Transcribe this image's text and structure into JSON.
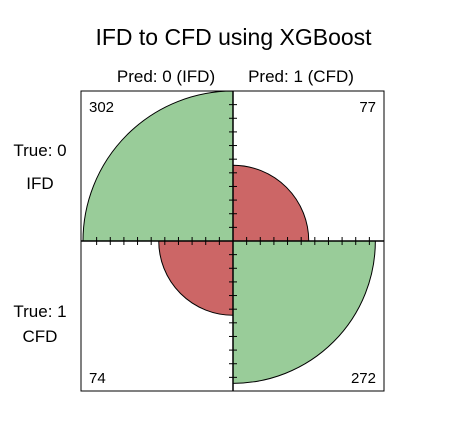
{
  "chart_data": {
    "type": "fourfold",
    "title": "IFD to CFD using XGBoost",
    "columns": [
      "Pred: 0 (IFD)",
      "Pred: 1 (CFD)"
    ],
    "rows": [
      {
        "line1": "True: 0",
        "line2": "IFD"
      },
      {
        "line1": "True: 1",
        "line2": "CFD"
      }
    ],
    "cells": [
      {
        "true": 0,
        "pred": 0,
        "value": 302,
        "correct": true
      },
      {
        "true": 0,
        "pred": 1,
        "value": 77,
        "correct": false
      },
      {
        "true": 1,
        "pred": 0,
        "value": 74,
        "correct": false
      },
      {
        "true": 1,
        "pred": 1,
        "value": 272,
        "correct": true
      }
    ]
  },
  "colors": {
    "correct": "#99cc99",
    "incorrect": "#cc6666",
    "axis": "#000000"
  }
}
